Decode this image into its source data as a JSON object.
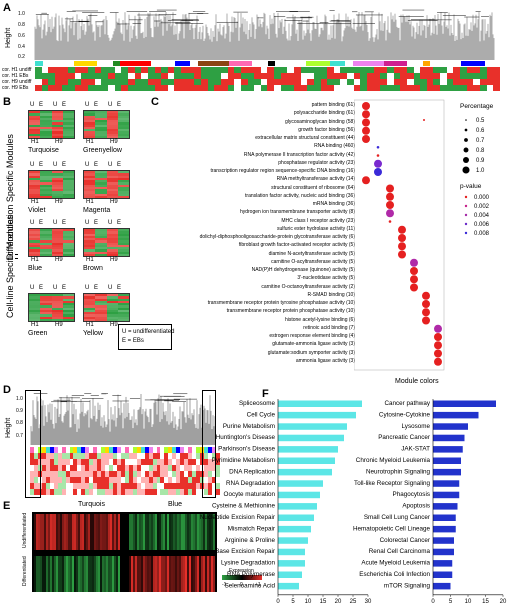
{
  "panel_labels": {
    "a": "A",
    "b": "B",
    "c": "C",
    "d": "D",
    "e": "E",
    "f": "F"
  },
  "panelA": {
    "ylabel": "Height",
    "yticks": [
      "0.2",
      "0.4",
      "0.6",
      "0.8",
      "1.0"
    ],
    "row_labels": [
      "cor. H1 undiff",
      "cor. H1 EBs",
      "cor. H9 undiff",
      "cor. H9 EBs"
    ]
  },
  "panelB": {
    "diff_title": "Differentiation Specific Modules",
    "line_title": "Cell-line Specific Modules",
    "modules": [
      {
        "name": "Turquoise",
        "h1": "H1",
        "h9": "H9",
        "u": "U",
        "e": "E"
      },
      {
        "name": "Greenyellow",
        "h1": "H1",
        "h9": "H9",
        "u": "U",
        "e": "E"
      },
      {
        "name": "Violet",
        "h1": "H1",
        "h9": "H9",
        "u": "U",
        "e": "E"
      },
      {
        "name": "Magenta",
        "h1": "H1",
        "h9": "H9",
        "u": "U",
        "e": "E"
      },
      {
        "name": "Blue",
        "h1": "H1",
        "h9": "H9",
        "u": "U",
        "e": "E"
      },
      {
        "name": "Brown",
        "h1": "H1",
        "h9": "H9",
        "u": "U",
        "e": "E"
      },
      {
        "name": "Green",
        "h1": "H1",
        "h9": "H9",
        "u": "U",
        "e": "E"
      },
      {
        "name": "Yellow",
        "h1": "H1",
        "h9": "H9",
        "u": "U",
        "e": "E"
      }
    ],
    "legend_line1": "U = undifferentiated",
    "legend_line2": "E = EBs"
  },
  "panelC": {
    "terms": [
      "pattern binding (61)",
      "polysaccharide binding (61)",
      "glycosaminoglycan binding (58)",
      "growth factor binding (56)",
      "extracellular matrix structural constituent (44)",
      "RNA binding (460)",
      "RNA polymerase II transcription factor activity (42)",
      "phosphatase regulator activity (23)",
      "transcription regulator region sequence-specific DNA binding (16)",
      "RNA methyltransferase activity (14)",
      "structural constituent of ribosome (64)",
      "translation factor activity, nucleic acid binding (36)",
      "mRNA binding (36)",
      "hydrogen ion transmembrane transporter activity (8)",
      "MHC class I receptor activity (23)",
      "sulfuric ester hydrolase activity (11)",
      "dolichyl-diphosphooligosaccharide-protein glycotransferase activity (6)",
      "fibroblast growth factor-activated receptor activity (5)",
      "diamine N-acetyltransferase activity (5)",
      "carnitine O-acyltransferase activity (5)",
      "NAD(P)H dehydrogenase (quinone) activity (5)",
      "3'-nucleotidase activity (5)",
      "carnitine O-octanoyltransferase activity (2)",
      "R-SMAD binding (10)",
      "transmembrane receptor protein tyrosine phosphatase activity (10)",
      "transmembrane receptor protein phosphatase activity (10)",
      "histone acetyl-lysine binding (6)",
      "retinoic acid binding (7)",
      "estrogen response element binding (4)",
      "glutamate-ammonia ligase activity (3)",
      "glutamate:sodium symporter activity (3)",
      "ammonia ligase activity (3)"
    ],
    "xlabel": "Module colors",
    "legend_percentage_title": "Percentage",
    "legend_percentage": [
      "0.5",
      "0.6",
      "0.7",
      "0.8",
      "0.9",
      "1.0"
    ],
    "legend_pvalue_title": "p-value",
    "legend_pvalue": [
      "0.000",
      "0.002",
      "0.004",
      "0.006",
      "0.008"
    ]
  },
  "panelD": {
    "ylabel": "Height",
    "yticks": [
      "0.7",
      "0.8",
      "0.9",
      "1.0"
    ]
  },
  "panelE": {
    "col1": "Turquois",
    "col2": "Blue",
    "row1": "Undifferentiated",
    "row2": "Differentiated",
    "legend_title": "Expression",
    "legend_ticks": [
      "-1",
      "0",
      "+1"
    ]
  },
  "panelF": {
    "left_xlabel": "Gene Number",
    "right_xlabel": "Gene Number",
    "left_ticks": [
      "0",
      "5",
      "10",
      "15",
      "20",
      "25",
      "30"
    ],
    "right_ticks": [
      "0",
      "5",
      "10",
      "15",
      "20"
    ]
  },
  "chart_data": [
    {
      "type": "bar",
      "orientation": "horizontal",
      "categories": [
        "Spliceosome",
        "Cell Cycle",
        "Purine Metabolism",
        "Huntington's Disease",
        "Parkinson's Disease",
        "Pyrimidine Metabolism",
        "DNA Replication",
        "RNA Degradation",
        "Oocyte maturation",
        "Cysteine & Methionine",
        "Nucleotide Excision Repair",
        "Mismatch Repair",
        "Arginine & Proline",
        "Base Excision Repair",
        "Lysine Degradation",
        "RNA Polymerase",
        "Selenoamino Acid"
      ],
      "values": [
        28,
        26,
        23,
        22,
        20,
        19,
        18,
        15,
        14,
        13,
        12,
        11,
        10,
        9,
        9,
        8,
        7
      ],
      "xlabel": "Gene Number",
      "xlim": [
        0,
        30
      ],
      "color": "#5ce6e6"
    },
    {
      "type": "bar",
      "orientation": "horizontal",
      "categories": [
        "Cancer pathway",
        "Cytosine-Cytokine",
        "Lysosome",
        "Pancreatic Cancer",
        "JAK-STAT",
        "Chronic Myeloid Leukemia",
        "Neurotrophin Signaling",
        "Toll-like Receptor Signaling",
        "Phagocytosis",
        "Apoptosis",
        "Small Cell Lung Cancer",
        "Hematopoietic Cell Lineage",
        "Colorectal Cancer",
        "Renal Cell Carcinoma",
        "Acute Myeloid Leukemia",
        "Escherichia Coli Infection",
        "mTOR Signaling"
      ],
      "values": [
        18,
        13,
        10,
        9,
        8.5,
        8,
        8,
        7.5,
        7.5,
        7,
        6.5,
        6.5,
        6,
        6,
        5.5,
        5.5,
        5
      ],
      "xlabel": "Gene Number",
      "xlim": [
        0,
        20
      ],
      "color": "#2233cc"
    }
  ],
  "colors": {
    "module_colors": [
      "#40e0d0",
      "#8b4513",
      "#d02090",
      "#adff2f",
      "#ee82ee",
      "#ffd700",
      "#228b22"
    ],
    "heat_red": "#e8302a",
    "heat_green": "#2ea043",
    "cyan_bar": "#5ce6e6",
    "blue_bar": "#2233cc"
  }
}
